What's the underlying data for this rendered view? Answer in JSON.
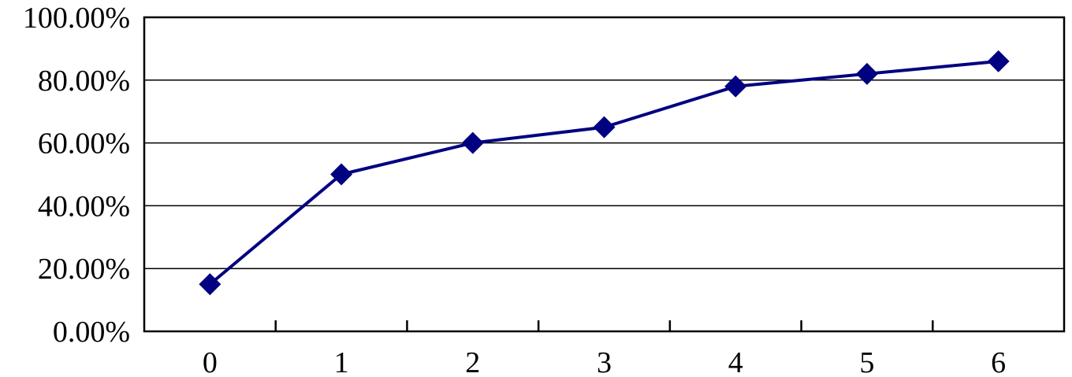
{
  "chart_data": {
    "type": "line",
    "title": "",
    "xlabel": "",
    "ylabel": "",
    "categories": [
      "0",
      "1",
      "2",
      "3",
      "4",
      "5",
      "6"
    ],
    "series": [
      {
        "values": [
          0.15,
          0.5,
          0.6,
          0.65,
          0.78,
          0.82,
          0.86
        ],
        "color": "#000080",
        "marker": "diamond"
      }
    ],
    "ylim": [
      0,
      1
    ],
    "yticks": [
      0,
      0.2,
      0.4,
      0.6,
      0.8,
      1.0
    ],
    "ytick_labels": [
      "0.00%",
      "20.00%",
      "40.00%",
      "60.00%",
      "80.00%",
      "100.00%"
    ],
    "grid": "horizontal",
    "legend": "none"
  }
}
